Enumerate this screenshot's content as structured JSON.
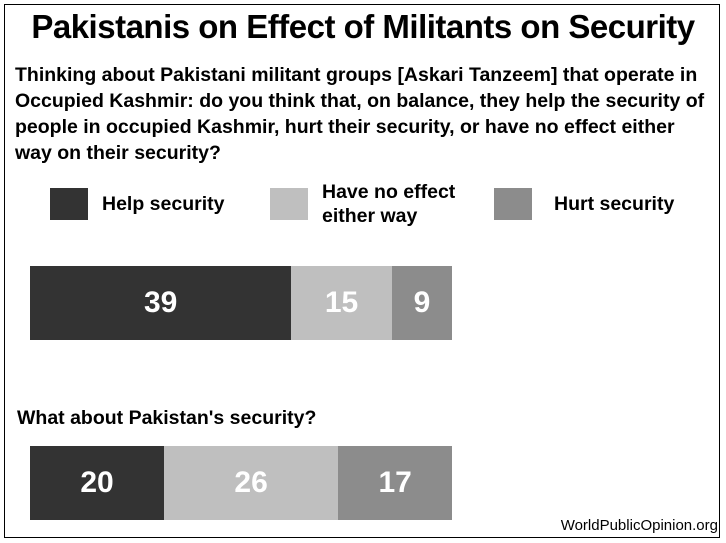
{
  "title": "Pakistanis on Effect of Militants on Security",
  "question": "Thinking about Pakistani militant groups [Askari Tanzeem] that operate in Occupied Kashmir:  do you think that, on balance, they help the security of people in occupied Kashmir, hurt their security, or have no effect either way on their security?",
  "legend": [
    {
      "label": "Help security",
      "color": "#333333"
    },
    {
      "label": "Have no effect either way",
      "color": "#bfbfbf"
    },
    {
      "label": "Hurt security",
      "color": "#8c8c8c"
    }
  ],
  "sub_question": "What about Pakistan's security?",
  "source": "WorldPublicOpinion.org",
  "chart_data": {
    "type": "bar",
    "orientation": "horizontal-stacked",
    "series_names": [
      "Help security",
      "Have no effect either way",
      "Hurt security"
    ],
    "colors": [
      "#333333",
      "#bfbfbf",
      "#8c8c8c"
    ],
    "rows": [
      {
        "values": [
          39,
          15,
          9
        ],
        "labels": [
          "39",
          "15",
          "9"
        ]
      },
      {
        "values": [
          20,
          26,
          17
        ],
        "labels": [
          "20",
          "26",
          "17"
        ]
      }
    ]
  }
}
